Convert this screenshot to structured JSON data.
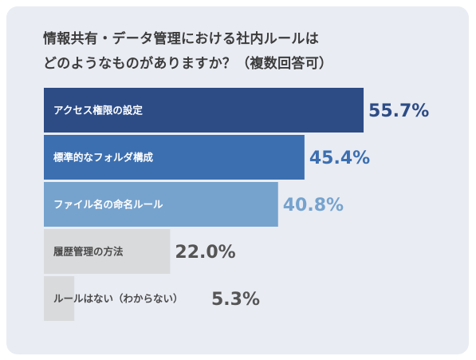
{
  "title_lines": [
    "情報共有・データ管理における社内ルールは",
    "どのようなものがありますか？（複数回答可）"
  ],
  "chart_data": {
    "type": "bar",
    "orientation": "horizontal",
    "title": "情報共有・データ管理における社内ルールは どのようなものがありますか？（複数回答可）",
    "categories": [
      "アクセス権限の設定",
      "標準的なフォルダ構成",
      "ファイル名の命名ルール",
      "履歴管理の方法",
      "ルールはない（わからない）"
    ],
    "values": [
      55.7,
      45.4,
      40.8,
      22.0,
      5.3
    ],
    "value_labels": [
      "55.7%",
      "45.4%",
      "40.8%",
      "22.0%",
      "5.3%"
    ],
    "xlim": [
      0,
      100
    ],
    "unit": "%",
    "grid": false,
    "legend": "none",
    "bar_colors": [
      "#2d4c86",
      "#3c6fb0",
      "#76a3ce",
      "#d9dadc",
      "#d9dadc"
    ],
    "label_colors": [
      "#ffffff",
      "#ffffff",
      "#ffffff",
      "#4a4a4a",
      "#4a4a4a"
    ],
    "value_colors": [
      "#2d4c86",
      "#3c6fb0",
      "#76a3ce",
      "#555555",
      "#555555"
    ]
  }
}
